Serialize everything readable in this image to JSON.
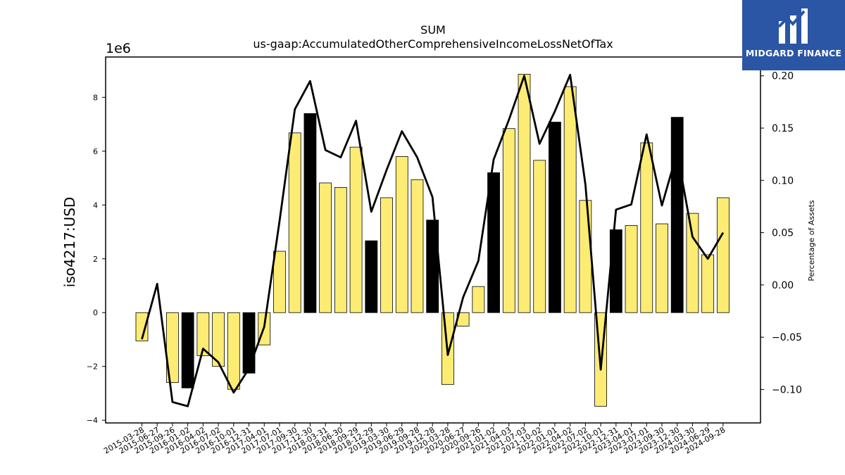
{
  "chart_data": {
    "type": "bar",
    "title": "SUM",
    "subtitle": "us-gaap:AccumulatedOtherComprehensiveIncomeLossNetOfTax",
    "ylabel": "iso4217:USD",
    "y2label": "Percentage of Assets",
    "y_multiplier_label": "1e6",
    "ylim": [
      -4.1,
      9.5
    ],
    "y2lim": [
      -0.132,
      0.218
    ],
    "yticks": [
      -4,
      -2,
      0,
      2,
      4,
      6,
      8
    ],
    "y2ticks": [
      -0.1,
      -0.05,
      0.0,
      0.05,
      0.1,
      0.15,
      0.2
    ],
    "y2tick_labels": [
      "−0.10",
      "−0.05",
      "0.00",
      "0.05",
      "0.10",
      "0.15",
      "0.20"
    ],
    "grid": false,
    "categories": [
      "2015-03-28",
      "2015-06-27",
      "2015-09-26",
      "2016-01-02",
      "2016-04-02",
      "2016-07-02",
      "2016-10-01",
      "2016-12-31",
      "2017-04-01",
      "2017-07-01",
      "2017-09-30",
      "2017-12-30",
      "2018-03-31",
      "2018-06-30",
      "2018-09-29",
      "2018-12-29",
      "2019-03-30",
      "2019-06-29",
      "2019-09-28",
      "2019-12-28",
      "2020-03-28",
      "2020-06-27",
      "2020-09-26",
      "2021-01-02",
      "2021-04-03",
      "2021-07-03",
      "2021-10-02",
      "2022-01-01",
      "2022-04-02",
      "2022-07-02",
      "2022-10-01",
      "2022-12-31",
      "2023-04-01",
      "2023-07-01",
      "2023-09-30",
      "2023-12-30",
      "2024-03-30",
      "2024-06-29",
      "2024-09-28"
    ],
    "series": [
      {
        "kind": "bar",
        "values": [
          -1.05,
          null,
          -2.6,
          -2.8,
          -1.6,
          -2.0,
          -2.85,
          -2.25,
          -1.2,
          2.28,
          6.68,
          7.4,
          4.82,
          4.65,
          6.15,
          2.67,
          4.27,
          5.8,
          4.94,
          3.44,
          -2.67,
          -0.5,
          0.97,
          5.2,
          6.84,
          8.86,
          5.66,
          7.08,
          8.4,
          4.17,
          -3.48,
          3.08,
          3.24,
          6.31,
          3.3,
          7.26,
          3.69,
          2.15,
          4.27
        ],
        "highlight": [
          false,
          false,
          false,
          true,
          false,
          false,
          false,
          true,
          false,
          false,
          false,
          true,
          false,
          false,
          false,
          true,
          false,
          false,
          false,
          true,
          false,
          false,
          false,
          true,
          false,
          false,
          false,
          true,
          false,
          false,
          false,
          true,
          false,
          false,
          false,
          true,
          false,
          false,
          false
        ],
        "color": "#fcec74",
        "highlight_color": "#000000"
      },
      {
        "kind": "line",
        "axis": "right",
        "values": [
          -0.052,
          0.001,
          -0.112,
          -0.116,
          -0.061,
          -0.074,
          -0.103,
          -0.08,
          -0.04,
          0.061,
          0.168,
          0.195,
          0.129,
          0.122,
          0.157,
          0.07,
          0.11,
          0.147,
          0.122,
          0.084,
          -0.067,
          -0.012,
          0.023,
          0.12,
          0.158,
          0.2,
          0.135,
          0.166,
          0.201,
          0.096,
          -0.081,
          0.072,
          0.077,
          0.144,
          0.076,
          0.127,
          0.046,
          0.025,
          0.05
        ],
        "color": "#000000"
      }
    ]
  },
  "logo": {
    "text": "MIDGARD FINANCE",
    "color": "#2b56a6"
  }
}
